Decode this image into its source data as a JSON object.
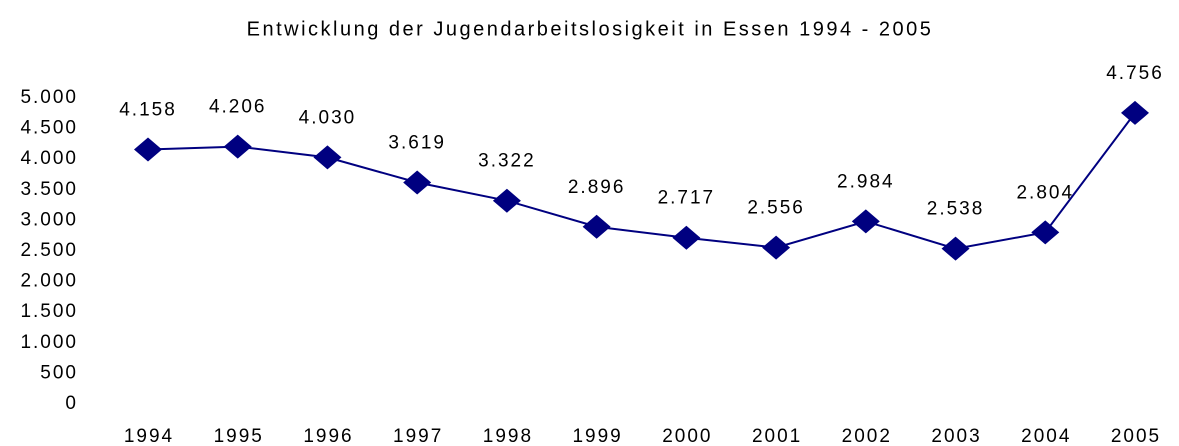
{
  "chart_data": {
    "type": "line",
    "title": "Entwicklung der Jugendarbeitslosigkeit in Essen 1994 - 2005",
    "categories": [
      "1994",
      "1995",
      "1996",
      "1997",
      "1998",
      "1999",
      "2000",
      "2001",
      "2002",
      "2003",
      "2004",
      "2005"
    ],
    "series": [
      {
        "name": "Jugendarbeitslosigkeit",
        "color": "#000080",
        "values": [
          4158,
          4206,
          4030,
          3619,
          3322,
          2896,
          2717,
          2556,
          2984,
          2538,
          2804,
          4756
        ],
        "value_labels": [
          "4.158",
          "4.206",
          "4.030",
          "3.619",
          "3.322",
          "2.896",
          "2.717",
          "2.556",
          "2.984",
          "2.538",
          "2.804",
          "4.756"
        ]
      }
    ],
    "ylim": [
      0,
      5000
    ],
    "yticks": [
      0,
      500,
      {
        "value": 1000,
        "label": "1.000"
      },
      {
        "value": 1500,
        "label": "1.500"
      },
      {
        "value": 2000,
        "label": "2.000"
      },
      {
        "value": 2500,
        "label": "2.500"
      },
      {
        "value": 3000,
        "label": "3.000"
      },
      {
        "value": 3500,
        "label": "3.500"
      },
      {
        "value": 4000,
        "label": "4.000"
      },
      {
        "value": 4500,
        "label": "4.500"
      },
      {
        "value": 5000,
        "label": "5.000"
      }
    ],
    "grid": false
  }
}
